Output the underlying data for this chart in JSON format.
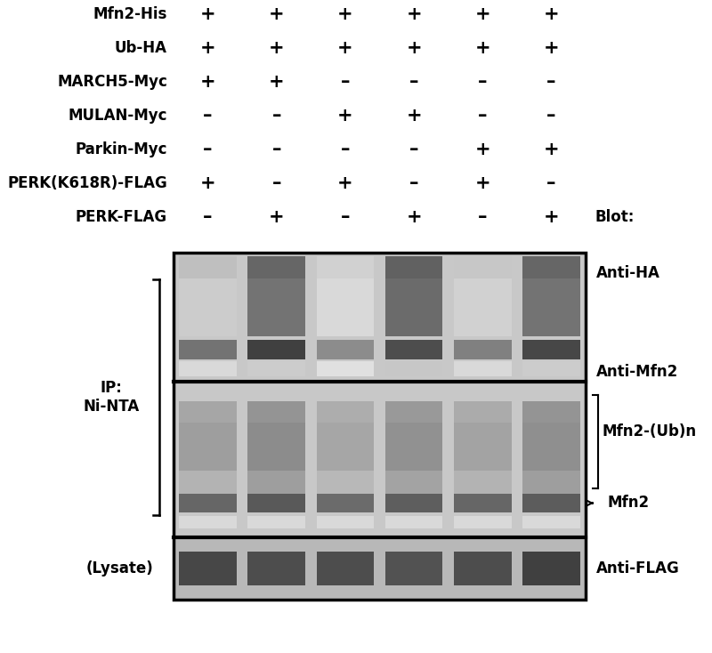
{
  "rows": [
    {
      "label": "Mfn2-His",
      "values": [
        "+",
        "+",
        "+",
        "+",
        "+",
        "+"
      ]
    },
    {
      "label": "Ub-HA",
      "values": [
        "+",
        "+",
        "+",
        "+",
        "+",
        "+"
      ]
    },
    {
      "label": "MARCH5-Myc",
      "values": [
        "+",
        "+",
        "–",
        "–",
        "–",
        "–"
      ]
    },
    {
      "label": "MULAN-Myc",
      "values": [
        "–",
        "–",
        "+",
        "+",
        "–",
        "–"
      ]
    },
    {
      "label": "Parkin-Myc",
      "values": [
        "–",
        "–",
        "–",
        "–",
        "+",
        "+"
      ]
    },
    {
      "label": "PERK(K618R)-FLAG",
      "values": [
        "+",
        "–",
        "+",
        "–",
        "+",
        "–"
      ]
    },
    {
      "label": "PERK-FLAG",
      "values": [
        "–",
        "+",
        "–",
        "+",
        "–",
        "+"
      ]
    }
  ],
  "blot_label": "Blot:",
  "ip_label": "IP:\nNi-NTA",
  "lysate_label": "(Lysate)",
  "n_lanes": 6,
  "font_size_row": 12,
  "font_size_sym": 13
}
